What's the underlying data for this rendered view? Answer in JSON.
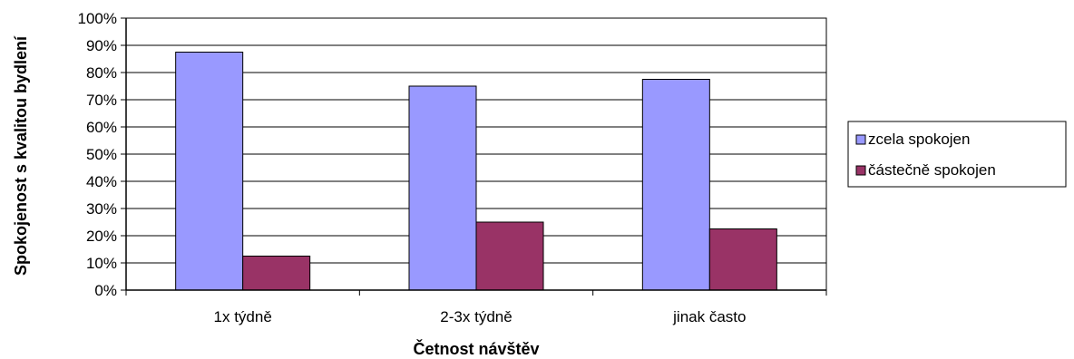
{
  "chart_data": {
    "type": "bar",
    "categories": [
      "1x týdně",
      "2-3x týdně",
      "jinak často"
    ],
    "series": [
      {
        "name": "zcela spokojen",
        "values": [
          87.5,
          75,
          77.5
        ],
        "color": "#9999ff"
      },
      {
        "name": "částečně spokojen",
        "values": [
          12.5,
          25,
          22.5
        ],
        "color": "#993366"
      }
    ],
    "xlabel": "Četnost návštěv",
    "ylabel": "Spokojenost s kvalitou bydlení",
    "ylim": [
      0,
      100
    ],
    "yticks": [
      0,
      10,
      20,
      30,
      40,
      50,
      60,
      70,
      80,
      90,
      100
    ],
    "ytick_suffix": "%",
    "grid": true,
    "legend_position": "right"
  }
}
